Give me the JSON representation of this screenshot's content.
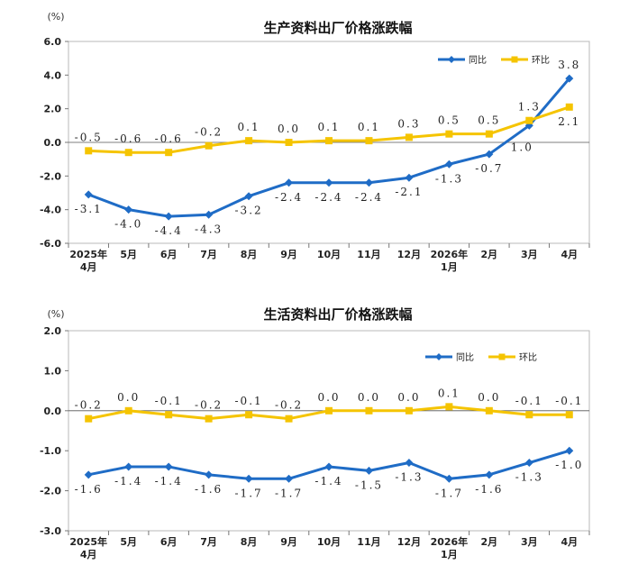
{
  "chart_data": [
    {
      "type": "line",
      "title": "生产资料出厂价格涨跌幅",
      "unit": "(%)",
      "ylim": [
        -6,
        6
      ],
      "yticks": [
        6,
        4,
        2,
        0,
        -2,
        -4,
        -6
      ],
      "ytick_labels": [
        "6.0",
        "4.0",
        "2.0",
        "0.0",
        "-2.0",
        "-4.0",
        "-6.0"
      ],
      "categories": [
        "2025年\n4月",
        "5月",
        "6月",
        "7月",
        "8月",
        "9月",
        "10月",
        "11月",
        "12月",
        "2026年\n1月",
        "2月",
        "3月",
        "4月"
      ],
      "legend_position": "top-right",
      "series": [
        {
          "name": "同比",
          "color": "#1f6cc6",
          "marker": "diamond",
          "values": [
            -3.1,
            -4.0,
            -4.4,
            -4.3,
            -3.2,
            -2.4,
            -2.4,
            -2.4,
            -2.1,
            -1.3,
            -0.7,
            1.0,
            3.8
          ],
          "labels": [
            "-3.1",
            "-4.0",
            "-4.4",
            "-4.3",
            "-3.2",
            "-2.4",
            "-2.4",
            "-2.4",
            "-2.1",
            "-1.3",
            "-0.7",
            "1.0",
            "3.8"
          ]
        },
        {
          "name": "环比",
          "color": "#f5c400",
          "marker": "square",
          "values": [
            -0.5,
            -0.6,
            -0.6,
            -0.2,
            0.1,
            0.0,
            0.1,
            0.1,
            0.3,
            0.5,
            0.5,
            1.3,
            2.1
          ],
          "labels": [
            "-0.5",
            "-0.6",
            "-0.6",
            "-0.2",
            "0.1",
            "0.0",
            "0.1",
            "0.1",
            "0.3",
            "0.5",
            "0.5",
            "1.3",
            "2.1"
          ]
        }
      ]
    },
    {
      "type": "line",
      "title": "生活资料出厂价格涨跌幅",
      "unit": "(%)",
      "ylim": [
        -3,
        2
      ],
      "yticks": [
        2,
        1,
        0,
        -1,
        -2,
        -3
      ],
      "ytick_labels": [
        "2.0",
        "1.0",
        "0.0",
        "-1.0",
        "-2.0",
        "-3.0"
      ],
      "categories": [
        "2025年\n4月",
        "5月",
        "6月",
        "7月",
        "8月",
        "9月",
        "10月",
        "11月",
        "12月",
        "2026年\n1月",
        "2月",
        "3月",
        "4月"
      ],
      "legend_position": "top-right",
      "series": [
        {
          "name": "同比",
          "color": "#1f6cc6",
          "marker": "diamond",
          "values": [
            -1.6,
            -1.4,
            -1.4,
            -1.6,
            -1.7,
            -1.7,
            -1.4,
            -1.5,
            -1.3,
            -1.7,
            -1.6,
            -1.3,
            -1.0
          ],
          "labels": [
            "-1.6",
            "-1.4",
            "-1.4",
            "-1.6",
            "-1.7",
            "-1.7",
            "-1.4",
            "-1.5",
            "-1.3",
            "-1.7",
            "-1.6",
            "-1.3",
            "-1.0"
          ]
        },
        {
          "name": "环比",
          "color": "#f5c400",
          "marker": "square",
          "values": [
            -0.2,
            0.0,
            -0.1,
            -0.2,
            -0.1,
            -0.2,
            0.0,
            0.0,
            0.0,
            0.1,
            0.0,
            -0.1,
            -0.1
          ],
          "labels": [
            "-0.2",
            "0.0",
            "-0.1",
            "-0.2",
            "-0.1",
            "-0.2",
            "0.0",
            "0.0",
            "0.0",
            "0.1",
            "0.0",
            "-0.1",
            "-0.1"
          ]
        }
      ]
    }
  ]
}
